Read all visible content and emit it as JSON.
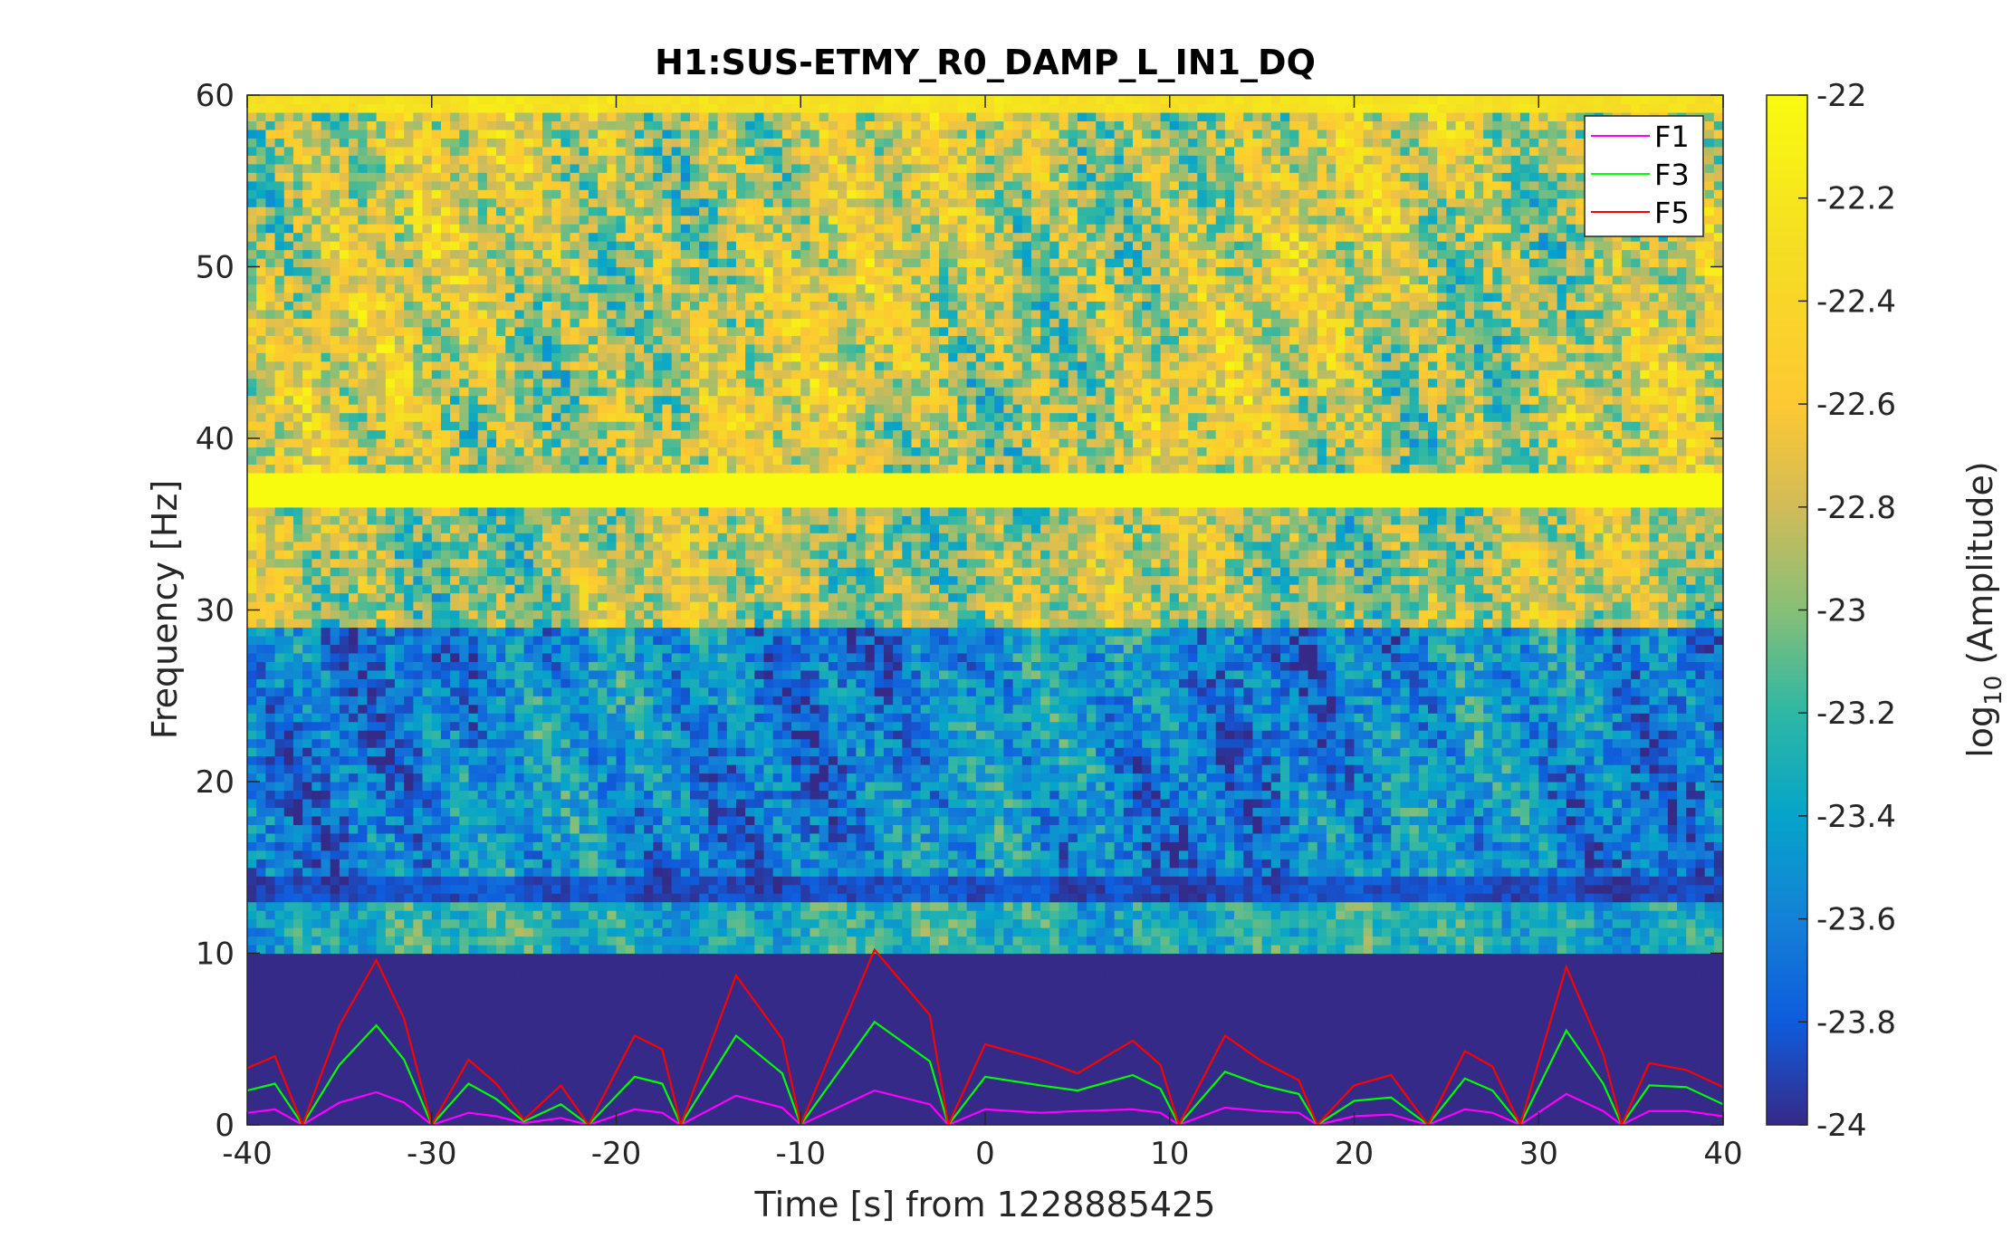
{
  "chart_data": {
    "type": "heatmap",
    "title": "H1:SUS-ETMY_R0_DAMP_L_IN1_DQ",
    "xlabel": "Time [s] from 1228885425",
    "ylabel": "Frequency [Hz]",
    "colorbar_label_main": "log",
    "colorbar_label_sub": "10",
    "colorbar_label_tail": " (Amplitude)",
    "xlim": [
      -40,
      40
    ],
    "ylim": [
      0,
      60
    ],
    "clim": [
      -24,
      -22
    ],
    "xticks": [
      "-40",
      "-30",
      "-20",
      "-10",
      "0",
      "10",
      "20",
      "30",
      "40"
    ],
    "yticks": [
      "0",
      "10",
      "20",
      "30",
      "40",
      "50",
      "60"
    ],
    "cticks": [
      "-22",
      "-22.2",
      "-22.4",
      "-22.6",
      "-22.8",
      "-23",
      "-23.2",
      "-23.4",
      "-23.6",
      "-23.8",
      "-24"
    ],
    "colormap": "parula",
    "legend_position": "top-right",
    "heatmap_bands": [
      {
        "f": [
          0,
          10
        ],
        "level": -24.0,
        "noise": 0.0
      },
      {
        "f": [
          10,
          13
        ],
        "level": -23.3,
        "noise": 0.35
      },
      {
        "f": [
          13,
          14.5
        ],
        "level": -23.85,
        "noise": 0.15
      },
      {
        "f": [
          14.5,
          29
        ],
        "level": -23.55,
        "noise": 0.45
      },
      {
        "f": [
          29,
          36
        ],
        "level": -22.9,
        "noise": 0.55
      },
      {
        "f": [
          36,
          38
        ],
        "level": -22.0,
        "noise": 0.0
      },
      {
        "f": [
          38,
          58.8
        ],
        "level": -22.8,
        "noise": 0.6
      },
      {
        "f": [
          58.8,
          60
        ],
        "level": -22.25,
        "noise": 0.1
      }
    ],
    "series": [
      {
        "name": "F1",
        "color": "#ff00ff",
        "points": [
          [
            -40,
            0.7
          ],
          [
            -38.5,
            0.9
          ],
          [
            -37,
            0
          ],
          [
            -35,
            1.3
          ],
          [
            -33,
            1.9
          ],
          [
            -31.5,
            1.3
          ],
          [
            -30,
            0
          ],
          [
            -28,
            0.7
          ],
          [
            -26.5,
            0.5
          ],
          [
            -25,
            0.1
          ],
          [
            -23,
            0.4
          ],
          [
            -21.5,
            0
          ],
          [
            -19,
            0.9
          ],
          [
            -17.5,
            0.7
          ],
          [
            -16.5,
            0
          ],
          [
            -13.5,
            1.7
          ],
          [
            -11,
            1
          ],
          [
            -10,
            0
          ],
          [
            -6,
            2
          ],
          [
            -3,
            1.2
          ],
          [
            -2,
            0
          ],
          [
            0,
            0.9
          ],
          [
            3,
            0.7
          ],
          [
            5,
            0.8
          ],
          [
            8,
            0.9
          ],
          [
            9.5,
            0.7
          ],
          [
            10.5,
            0
          ],
          [
            13,
            1
          ],
          [
            15,
            0.8
          ],
          [
            17,
            0.7
          ],
          [
            18,
            0
          ],
          [
            20,
            0.5
          ],
          [
            22,
            0.6
          ],
          [
            24,
            0
          ],
          [
            26,
            0.9
          ],
          [
            27.5,
            0.7
          ],
          [
            29,
            0
          ],
          [
            31.5,
            1.8
          ],
          [
            33.5,
            0.8
          ],
          [
            34.5,
            0
          ],
          [
            36,
            0.8
          ],
          [
            38,
            0.8
          ],
          [
            40,
            0.5
          ]
        ]
      },
      {
        "name": "F3",
        "color": "#00ff00",
        "points": [
          [
            -40,
            2
          ],
          [
            -38.5,
            2.4
          ],
          [
            -37,
            0
          ],
          [
            -35,
            3.5
          ],
          [
            -33,
            5.8
          ],
          [
            -31.5,
            3.8
          ],
          [
            -30,
            0
          ],
          [
            -28,
            2.4
          ],
          [
            -26.5,
            1.5
          ],
          [
            -25,
            0.2
          ],
          [
            -23,
            1.2
          ],
          [
            -21.5,
            0
          ],
          [
            -19,
            2.8
          ],
          [
            -17.5,
            2.4
          ],
          [
            -16.5,
            0
          ],
          [
            -13.5,
            5.2
          ],
          [
            -11,
            3
          ],
          [
            -10,
            0
          ],
          [
            -6,
            6
          ],
          [
            -3,
            3.7
          ],
          [
            -2,
            0
          ],
          [
            0,
            2.8
          ],
          [
            3,
            2.3
          ],
          [
            5,
            2
          ],
          [
            8,
            2.9
          ],
          [
            9.5,
            2.1
          ],
          [
            10.5,
            0
          ],
          [
            13,
            3.1
          ],
          [
            15,
            2.3
          ],
          [
            17,
            1.8
          ],
          [
            18,
            0
          ],
          [
            20,
            1.4
          ],
          [
            22,
            1.6
          ],
          [
            24,
            0
          ],
          [
            26,
            2.7
          ],
          [
            27.5,
            2
          ],
          [
            29,
            0
          ],
          [
            31.5,
            5.5
          ],
          [
            33.5,
            2.4
          ],
          [
            34.5,
            0
          ],
          [
            36,
            2.3
          ],
          [
            38,
            2.2
          ],
          [
            40,
            1.2
          ]
        ]
      },
      {
        "name": "F5",
        "color": "#ff0000",
        "points": [
          [
            -40,
            3.3
          ],
          [
            -38.5,
            4
          ],
          [
            -37,
            0
          ],
          [
            -35,
            5.8
          ],
          [
            -33,
            9.6
          ],
          [
            -31.5,
            6.2
          ],
          [
            -30,
            0
          ],
          [
            -28,
            3.8
          ],
          [
            -26.5,
            2.4
          ],
          [
            -25,
            0.3
          ],
          [
            -23,
            2.3
          ],
          [
            -21.5,
            0
          ],
          [
            -19,
            5.2
          ],
          [
            -17.5,
            4.4
          ],
          [
            -16.5,
            0
          ],
          [
            -13.5,
            8.7
          ],
          [
            -11,
            5
          ],
          [
            -10,
            0
          ],
          [
            -6,
            10.2
          ],
          [
            -3,
            6.4
          ],
          [
            -2,
            0
          ],
          [
            0,
            4.7
          ],
          [
            3,
            3.8
          ],
          [
            5,
            3
          ],
          [
            8,
            4.9
          ],
          [
            9.5,
            3.5
          ],
          [
            10.5,
            0
          ],
          [
            13,
            5.2
          ],
          [
            15,
            3.7
          ],
          [
            17,
            2.6
          ],
          [
            18,
            0
          ],
          [
            20,
            2.3
          ],
          [
            22,
            2.9
          ],
          [
            24,
            0
          ],
          [
            26,
            4.3
          ],
          [
            27.5,
            3.4
          ],
          [
            29,
            0
          ],
          [
            31.5,
            9.2
          ],
          [
            33.5,
            4.1
          ],
          [
            34.5,
            0
          ],
          [
            36,
            3.6
          ],
          [
            38,
            3.2
          ],
          [
            40,
            2.2
          ]
        ]
      }
    ]
  }
}
